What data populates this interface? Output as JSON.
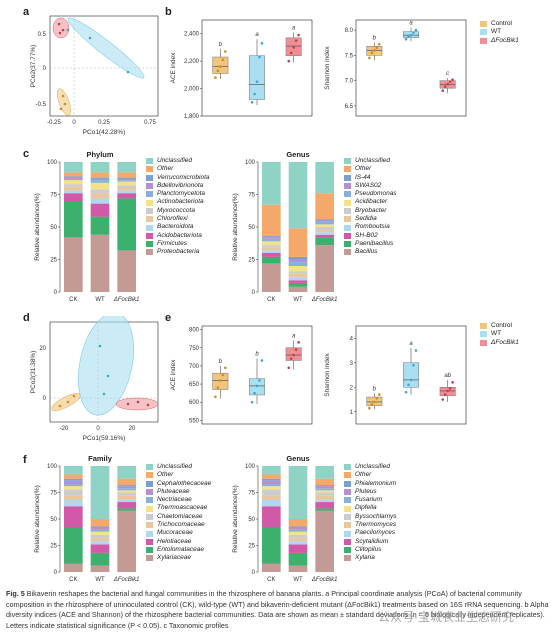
{
  "panels": {
    "a": {
      "letter": "a",
      "xlabel": "PCo1(42.28%)",
      "ylabel": "PCo2(37.77%)",
      "xticks": [
        "-0.25",
        "0",
        "0.25",
        "0.75"
      ],
      "yticks": [
        "0.5",
        "0",
        "-0.5"
      ]
    },
    "b": {
      "letter": "b",
      "ace_ylabel": "ACE index",
      "ace_yticks": [
        "2,400",
        "2,200",
        "2,000",
        "1,800"
      ],
      "ace_letters": [
        "b",
        "a",
        "a"
      ],
      "shannon_ylabel": "Shannon index",
      "shannon_yticks": [
        "8.0",
        "7.5",
        "7.0",
        "6.5"
      ],
      "shannon_letters": [
        "b",
        "a",
        "c"
      ]
    },
    "c": {
      "letter": "c",
      "phylum_title": "Phylum",
      "genus_title": "Genus",
      "ylabel": "Relative abundance(%)",
      "yticks": [
        "100",
        "75",
        "50",
        "25",
        "0"
      ],
      "xcats": [
        "CK",
        "WT",
        "ΔFocBik1"
      ]
    },
    "d": {
      "letter": "d",
      "xlabel": "PCo1(59.16%)",
      "ylabel": "PCo2(31.38%)",
      "xticks": [
        "-20",
        "0",
        "20"
      ],
      "yticks": [
        "20",
        "0"
      ]
    },
    "e": {
      "letter": "e",
      "ace_ylabel": "ACE index",
      "ace_yticks": [
        "800",
        "750",
        "700",
        "650",
        "600",
        "550"
      ],
      "ace_letters": [
        "b",
        "b",
        "a"
      ],
      "shannon_ylabel": "Shannon index",
      "shannon_yticks": [
        "4",
        "3",
        "2",
        "1"
      ],
      "shannon_letters": [
        "b",
        "a",
        "ab"
      ]
    },
    "f": {
      "letter": "f",
      "family_title": "Family",
      "genus_title": "Genus",
      "ylabel": "Relative abundance(%)",
      "yticks": [
        "100",
        "75",
        "50",
        "25",
        "0"
      ],
      "xcats": [
        "CK",
        "WT",
        "ΔFocBik1"
      ]
    }
  },
  "group_legend": [
    "Control",
    "WT",
    "ΔFocBik1"
  ],
  "colors": {
    "control": "#f1c57a",
    "wt": "#a9dff0",
    "mut": "#ef8f95"
  },
  "chart_data": [
    {
      "panel": "b-ACE",
      "type": "box",
      "categories": [
        "Control",
        "WT",
        "ΔFocBik1"
      ],
      "ylim": [
        1800,
        2500
      ],
      "boxes": [
        {
          "min": 2070,
          "q1": 2110,
          "median": 2160,
          "q3": 2230,
          "max": 2290,
          "points": [
            2080,
            2130,
            2160,
            2210,
            2270
          ]
        },
        {
          "min": 1880,
          "q1": 1920,
          "median": 2030,
          "q3": 2240,
          "max": 2360,
          "points": [
            1900,
            1960,
            2050,
            2230,
            2330
          ]
        },
        {
          "min": 2190,
          "q1": 2240,
          "median": 2310,
          "q3": 2370,
          "max": 2410,
          "points": [
            2200,
            2260,
            2300,
            2350,
            2390
          ]
        }
      ]
    },
    {
      "panel": "b-Shannon",
      "type": "box",
      "categories": [
        "Control",
        "WT",
        "ΔFocBik1"
      ],
      "ylim": [
        6.3,
        8.2
      ],
      "boxes": [
        {
          "min": 7.4,
          "q1": 7.5,
          "median": 7.6,
          "q3": 7.68,
          "max": 7.75,
          "points": [
            7.45,
            7.55,
            7.6,
            7.65,
            7.72
          ]
        },
        {
          "min": 7.78,
          "q1": 7.85,
          "median": 7.9,
          "q3": 7.97,
          "max": 8.05,
          "points": [
            7.82,
            7.88,
            7.9,
            7.95,
            8.0
          ]
        },
        {
          "min": 6.75,
          "q1": 6.85,
          "median": 6.92,
          "q3": 7.0,
          "max": 7.05,
          "points": [
            6.8,
            6.88,
            6.93,
            6.98,
            7.02
          ]
        }
      ]
    },
    {
      "panel": "c-Phylum",
      "type": "stacked-bar",
      "categories": [
        "CK",
        "WT",
        "ΔFocBik1"
      ],
      "series": [
        {
          "name": "Proteobacteria",
          "color": "#c49a95",
          "values": [
            42,
            44,
            32
          ]
        },
        {
          "name": "Firmicutes",
          "color": "#3eb06d",
          "values": [
            28,
            14,
            40
          ]
        },
        {
          "name": "Acidobacteriota",
          "color": "#d05aa8",
          "values": [
            6,
            10,
            4
          ]
        },
        {
          "name": "Bacteroidota",
          "color": "#b0d6f0",
          "values": [
            2,
            4,
            2
          ]
        },
        {
          "name": "Chloroflexi",
          "color": "#e8c6a0",
          "values": [
            3,
            4,
            2
          ]
        },
        {
          "name": "Myxococcota",
          "color": "#cccccc",
          "values": [
            2,
            3,
            2
          ]
        },
        {
          "name": "Actinobacteriota",
          "color": "#f3e28a",
          "values": [
            3,
            5,
            3
          ]
        },
        {
          "name": "Planctomycetota",
          "color": "#8ab0d8",
          "values": [
            1,
            2,
            1
          ]
        },
        {
          "name": "Bdellovibrionota",
          "color": "#b890cf",
          "values": [
            1,
            1,
            1
          ]
        },
        {
          "name": "Verrucomicrobiota",
          "color": "#7a9fd0",
          "values": [
            1,
            1,
            1
          ]
        },
        {
          "name": "Other",
          "color": "#f4a96b",
          "values": [
            3,
            4,
            4
          ]
        },
        {
          "name": "Unclassified",
          "color": "#8fd3c7",
          "values": [
            8,
            8,
            8
          ]
        }
      ]
    },
    {
      "panel": "c-Genus",
      "type": "stacked-bar",
      "categories": [
        "CK",
        "WT",
        "ΔFocBik1"
      ],
      "series": [
        {
          "name": "Bacillus",
          "color": "#c49a95",
          "values": [
            22,
            4,
            36
          ]
        },
        {
          "name": "Paenibacillus",
          "color": "#3eb06d",
          "values": [
            5,
            3,
            6
          ]
        },
        {
          "name": "SH-B02",
          "color": "#d05aa8",
          "values": [
            3,
            2,
            2
          ]
        },
        {
          "name": "Romboutsia",
          "color": "#b0d6f0",
          "values": [
            2,
            2,
            2
          ]
        },
        {
          "name": "Sedidia",
          "color": "#e8c6a0",
          "values": [
            2,
            3,
            2
          ]
        },
        {
          "name": "Bryobacter",
          "color": "#cccccc",
          "values": [
            2,
            2,
            2
          ]
        },
        {
          "name": "Acidibacter",
          "color": "#f3e28a",
          "values": [
            3,
            4,
            2
          ]
        },
        {
          "name": "Pseudomonas",
          "color": "#8ab0d8",
          "values": [
            2,
            3,
            2
          ]
        },
        {
          "name": "SWAS02",
          "color": "#b890cf",
          "values": [
            1,
            2,
            1
          ]
        },
        {
          "name": "IS-44",
          "color": "#7a9fd0",
          "values": [
            1,
            2,
            1
          ]
        },
        {
          "name": "Other",
          "color": "#f4a96b",
          "values": [
            24,
            22,
            20
          ]
        },
        {
          "name": "Unclassified",
          "color": "#8fd3c7",
          "values": [
            33,
            51,
            24
          ]
        }
      ]
    },
    {
      "panel": "e-ACE",
      "type": "box",
      "categories": [
        "Control",
        "WT",
        "ΔFocBik1"
      ],
      "ylim": [
        540,
        810
      ],
      "boxes": [
        {
          "min": 610,
          "q1": 635,
          "median": 660,
          "q3": 680,
          "max": 700,
          "points": [
            615,
            640,
            660,
            675,
            695
          ]
        },
        {
          "min": 595,
          "q1": 620,
          "median": 645,
          "q3": 665,
          "max": 720,
          "points": [
            600,
            625,
            645,
            660,
            715
          ]
        },
        {
          "min": 690,
          "q1": 715,
          "median": 730,
          "q3": 750,
          "max": 770,
          "points": [
            695,
            720,
            730,
            745,
            765
          ]
        }
      ]
    },
    {
      "panel": "e-Shannon",
      "type": "box",
      "categories": [
        "Control",
        "WT",
        "ΔFocBik1"
      ],
      "ylim": [
        0.5,
        4.5
      ],
      "boxes": [
        {
          "min": 1.1,
          "q1": 1.25,
          "median": 1.4,
          "q3": 1.6,
          "max": 1.75,
          "points": [
            1.15,
            1.3,
            1.4,
            1.55,
            1.7
          ]
        },
        {
          "min": 1.7,
          "q1": 2.0,
          "median": 2.3,
          "q3": 3.0,
          "max": 3.6,
          "points": [
            1.8,
            2.1,
            2.3,
            2.9,
            3.5
          ]
        },
        {
          "min": 1.4,
          "q1": 1.65,
          "median": 1.85,
          "q3": 2.0,
          "max": 2.3,
          "points": [
            1.5,
            1.7,
            1.85,
            1.95,
            2.2
          ]
        }
      ]
    },
    {
      "panel": "f-Family",
      "type": "stacked-bar",
      "categories": [
        "CK",
        "WT",
        "ΔFocBik1"
      ],
      "series": [
        {
          "name": "Xylariaceae",
          "color": "#c49a95",
          "values": [
            8,
            6,
            58
          ]
        },
        {
          "name": "Entolomataceae",
          "color": "#3eb06d",
          "values": [
            34,
            12,
            2
          ]
        },
        {
          "name": "Helotiaceae",
          "color": "#d05aa8",
          "values": [
            20,
            8,
            6
          ]
        },
        {
          "name": "Mucoraceae",
          "color": "#b0d6f0",
          "values": [
            6,
            3,
            2
          ]
        },
        {
          "name": "Trichocomaceae",
          "color": "#e8c6a0",
          "values": [
            4,
            3,
            4
          ]
        },
        {
          "name": "Chaetomiaceae",
          "color": "#cccccc",
          "values": [
            6,
            3,
            3
          ]
        },
        {
          "name": "Thermoascaceae",
          "color": "#f3e28a",
          "values": [
            3,
            3,
            2
          ]
        },
        {
          "name": "Nectriaceae",
          "color": "#8ab0d8",
          "values": [
            2,
            2,
            2
          ]
        },
        {
          "name": "Pluteaceae",
          "color": "#b890cf",
          "values": [
            3,
            2,
            2
          ]
        },
        {
          "name": "Cephalothecaceae",
          "color": "#7a9fd0",
          "values": [
            2,
            1,
            1
          ]
        },
        {
          "name": "Other",
          "color": "#f4a96b",
          "values": [
            4,
            7,
            6
          ]
        },
        {
          "name": "Unclassified",
          "color": "#8fd3c7",
          "values": [
            8,
            50,
            12
          ]
        }
      ]
    },
    {
      "panel": "f-Genus",
      "type": "stacked-bar",
      "categories": [
        "CK",
        "WT",
        "ΔFocBik1"
      ],
      "series": [
        {
          "name": "Xylaria",
          "color": "#c49a95",
          "values": [
            8,
            6,
            58
          ]
        },
        {
          "name": "Clitopilus",
          "color": "#3eb06d",
          "values": [
            34,
            12,
            2
          ]
        },
        {
          "name": "Scytalidium",
          "color": "#d05aa8",
          "values": [
            20,
            8,
            6
          ]
        },
        {
          "name": "Paecilomyces",
          "color": "#b0d6f0",
          "values": [
            6,
            3,
            2
          ]
        },
        {
          "name": "Thermomyces",
          "color": "#e8c6a0",
          "values": [
            4,
            3,
            4
          ]
        },
        {
          "name": "Byssochlamys",
          "color": "#cccccc",
          "values": [
            6,
            3,
            3
          ]
        },
        {
          "name": "Dipfella",
          "color": "#f3e28a",
          "values": [
            3,
            3,
            2
          ]
        },
        {
          "name": "Fusarium",
          "color": "#8ab0d8",
          "values": [
            2,
            2,
            2
          ]
        },
        {
          "name": "Pluteus",
          "color": "#b890cf",
          "values": [
            3,
            2,
            2
          ]
        },
        {
          "name": "Phialemonium",
          "color": "#7a9fd0",
          "values": [
            2,
            1,
            1
          ]
        },
        {
          "name": "Other",
          "color": "#f4a96b",
          "values": [
            4,
            7,
            6
          ]
        },
        {
          "name": "Unclassified",
          "color": "#8fd3c7",
          "values": [
            8,
            50,
            12
          ]
        }
      ]
    }
  ],
  "caption": {
    "label": "Fig. 5",
    "text": "Bikaverin reshapes the bacterial and fungal communities in the rhizosphere of banana plants. a Principal coordinate analysis (PCoA) of bacterial community composition in the rhizosphere of uninoculated control (CK), wild-type (WT) and bikaverin-deficient mutant (ΔFocBik1) treatments based on 16S rRNA sequencing. b Alpha diversity indices (ACE and Shannon) of the rhizosphere bacterial communities. Data are shown as mean ± standard deviations (n = 6 biologically independent replicates). Letters indicate statistical significance (P < 0.05). c Taxonomic profiles"
  },
  "watermark": "公众号·宝城农业生态研究"
}
